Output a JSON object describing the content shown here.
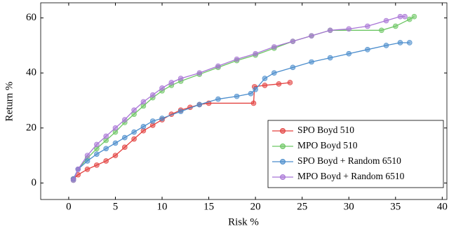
{
  "chart_data": {
    "type": "line",
    "x_label": "Risk %",
    "y_label": "Return %",
    "xlim": [
      -3,
      40.5
    ],
    "ylim": [
      -6,
      65.5
    ],
    "xticks": [
      0,
      5,
      10,
      15,
      20,
      25,
      30,
      35,
      40
    ],
    "yticks": [
      0,
      20,
      40,
      60
    ],
    "legend": "lower right",
    "series": [
      {
        "name": "SPO Boyd 510",
        "color": "#e3413f",
        "x": [
          0.5,
          1,
          2,
          3,
          4,
          5,
          6,
          7,
          8,
          9,
          10,
          11,
          12,
          13,
          14,
          15,
          19.8,
          19.9,
          21,
          22.5,
          23.7
        ],
        "values": [
          1.5,
          3,
          5,
          6.5,
          8,
          10,
          13,
          16,
          19,
          21,
          23,
          25,
          26.5,
          27.5,
          28.5,
          29,
          29,
          35,
          35.5,
          36,
          36.5
        ]
      },
      {
        "name": "MPO Boyd 510",
        "color": "#6cc663",
        "x": [
          0.5,
          1,
          2,
          3,
          4,
          5,
          6,
          7,
          8,
          9,
          10,
          11,
          12,
          14,
          16,
          18,
          20,
          22,
          24,
          26,
          28,
          33.5,
          35,
          36.5,
          37
        ],
        "values": [
          1,
          5,
          9,
          12.5,
          15.5,
          18.5,
          22,
          25,
          28,
          31,
          33.5,
          35.5,
          37,
          39.5,
          42,
          44.5,
          46.5,
          49,
          51.5,
          53.5,
          55.5,
          55.5,
          57,
          59.5,
          60.5
        ]
      },
      {
        "name": "SPO Boyd + Random 6510",
        "color": "#4a8ccc",
        "x": [
          0.5,
          1,
          2,
          3,
          4,
          5,
          6,
          7,
          8,
          9,
          10,
          12,
          14,
          16,
          18,
          19.5,
          20,
          21,
          22,
          24,
          26,
          28,
          30,
          32,
          34,
          35.5,
          36.5
        ],
        "values": [
          1.5,
          5,
          8,
          10.5,
          12.5,
          14.5,
          16.5,
          18.5,
          20.5,
          22.5,
          23.5,
          26,
          28.5,
          30.5,
          31.5,
          32.5,
          34,
          38,
          40,
          42,
          44,
          45.5,
          47,
          48.5,
          50,
          51,
          51
        ]
      },
      {
        "name": "MPO Boyd + Random 6510",
        "color": "#a874d6",
        "x": [
          0.5,
          1,
          2,
          3,
          4,
          5,
          6,
          7,
          8,
          9,
          10,
          11,
          12,
          14,
          16,
          18,
          20,
          22,
          24,
          26,
          28,
          30,
          32,
          34,
          35.5,
          36
        ],
        "values": [
          1,
          5,
          10,
          14,
          17,
          20,
          23,
          26.5,
          29.5,
          32,
          34.5,
          36.5,
          38,
          40,
          42.5,
          45,
          47,
          49.5,
          51.5,
          53.5,
          55.5,
          56,
          57,
          59,
          60.5,
          60.5
        ]
      }
    ]
  }
}
